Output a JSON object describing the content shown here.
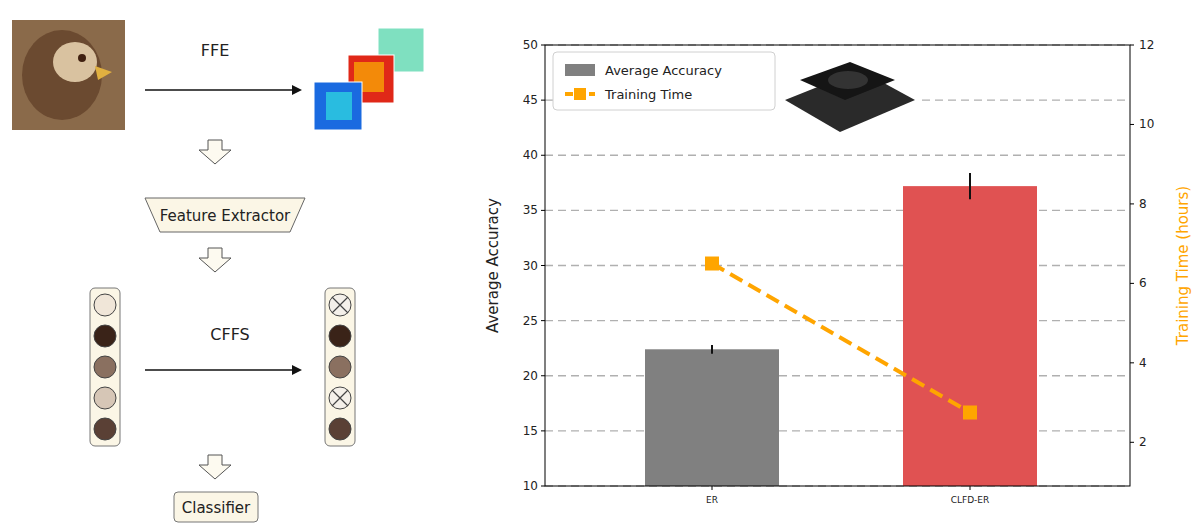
{
  "chart_data": {
    "type": "bar",
    "categories": [
      "ER",
      "CLFD-ER"
    ],
    "series": [
      {
        "name": "Average Accuracy",
        "type": "bar",
        "colors": [
          "#808080",
          "#e05252"
        ],
        "values": [
          22.4,
          37.2
        ],
        "errors": [
          0.4,
          1.2
        ]
      },
      {
        "name": "Training Time",
        "type": "line",
        "axis": "y2",
        "color": "#ffa500",
        "marker": "square",
        "line_style": "dashed",
        "values": [
          6.5,
          2.75
        ]
      }
    ],
    "y_label": "Average Accuracy",
    "y2_label": "Training Time (hours)",
    "ylim": [
      10,
      50
    ],
    "yticks": [
      10,
      15,
      20,
      25,
      30,
      35,
      40,
      45,
      50
    ],
    "y2lim": [
      0.9,
      12
    ],
    "y2ticks": [
      2,
      4,
      6,
      8,
      10,
      12
    ],
    "grid": true,
    "legend": "upper left"
  },
  "diagram": {
    "labels": [
      "FFE",
      "Feature Extractor",
      "CFFS",
      "Classifier"
    ]
  }
}
